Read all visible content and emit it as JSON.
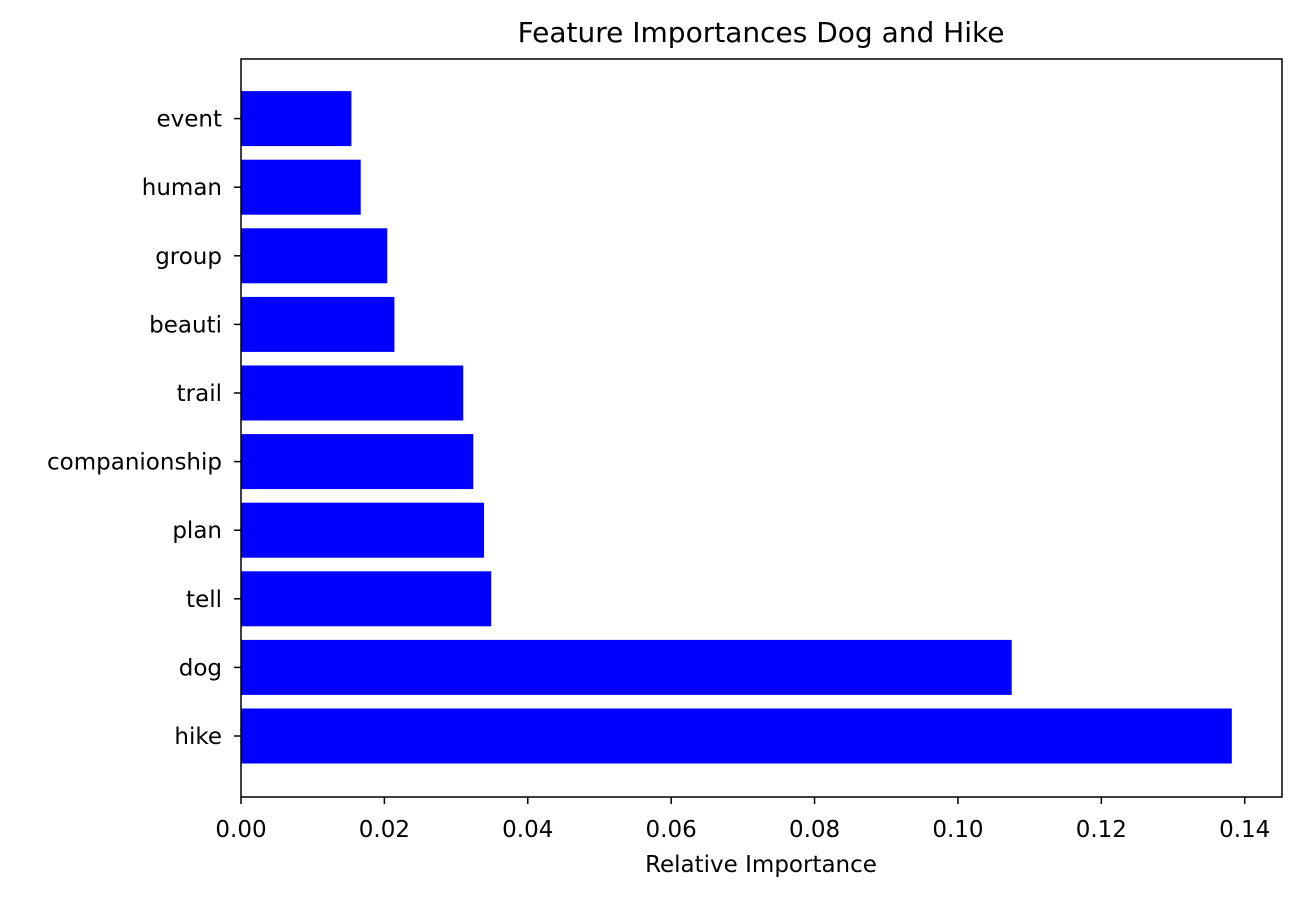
{
  "chart_data": {
    "type": "bar",
    "orientation": "horizontal",
    "title": "Feature Importances Dog and Hike",
    "xlabel": "Relative Importance",
    "ylabel": "",
    "categories": [
      "hike",
      "dog",
      "tell",
      "plan",
      "companionship",
      "trail",
      "beauti",
      "group",
      "human",
      "event"
    ],
    "values": [
      0.1382,
      0.1075,
      0.0349,
      0.0339,
      0.0324,
      0.031,
      0.0214,
      0.0204,
      0.0167,
      0.0154
    ],
    "xlim": [
      0.0,
      0.1452
    ],
    "xticks": [
      0.0,
      0.02,
      0.04,
      0.06,
      0.08,
      0.1,
      0.12,
      0.14
    ],
    "xtick_labels": [
      "0.00",
      "0.02",
      "0.04",
      "0.06",
      "0.08",
      "0.10",
      "0.12",
      "0.14"
    ],
    "bar_color": "#0000ff",
    "grid": false,
    "legend": "none"
  }
}
